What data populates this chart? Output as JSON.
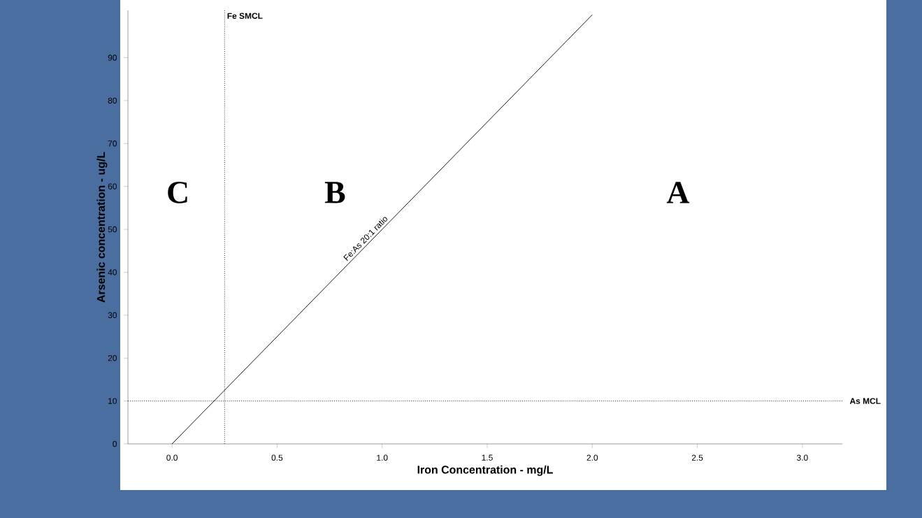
{
  "chart_data": {
    "type": "line",
    "xlabel": "Iron Concentration - mg/L",
    "ylabel": "Arsenic concentration - ug/L",
    "series": [
      {
        "name": "Fe:As 20:1 ratio",
        "color": "#000000",
        "x": [
          0,
          2.0
        ],
        "values": [
          0,
          100
        ]
      }
    ],
    "xlim": [
      -0.21,
      3.19
    ],
    "ylim": [
      0,
      101
    ],
    "xticks": [
      {
        "value": 0,
        "label": "0.0"
      },
      {
        "value": 0.5,
        "label": "0.5"
      },
      {
        "value": 1,
        "label": "1.0"
      },
      {
        "value": 1.5,
        "label": "1.5"
      },
      {
        "value": 2,
        "label": "2.0"
      },
      {
        "value": 2.5,
        "label": "2.5"
      },
      {
        "value": 3,
        "label": "3.0"
      }
    ],
    "yticks": [
      0,
      10,
      20,
      30,
      40,
      50,
      60,
      70,
      80,
      90
    ],
    "ref_lines": [
      {
        "axis": "x",
        "value": 0.25,
        "label": "Fe SMCL",
        "color": "#000000",
        "line_style": "dotted"
      },
      {
        "axis": "y",
        "value": 10,
        "label": "As MCL",
        "color": "#000000",
        "line_style": "dotted"
      }
    ],
    "annotations": [
      "C",
      "B",
      "A"
    ],
    "grid": false,
    "marker": "none",
    "line_style": "solid"
  }
}
